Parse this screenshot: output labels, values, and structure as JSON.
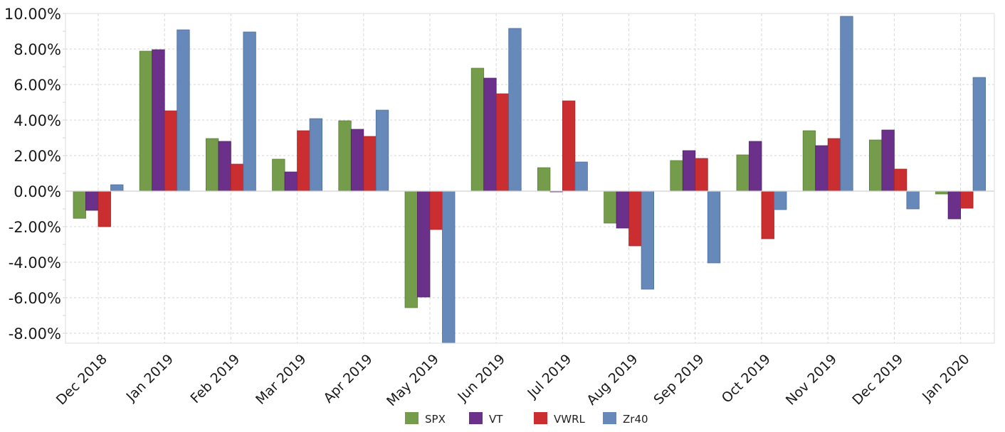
{
  "chart_data": {
    "type": "bar",
    "title": "",
    "xlabel": "",
    "ylabel": "",
    "ylim": [
      -8.56,
      10.0
    ],
    "y_ticks": [
      -8,
      -6,
      -4,
      -2,
      0,
      2,
      4,
      6,
      8,
      10
    ],
    "y_tick_labels": [
      "-8.00%",
      "-6.00%",
      "-4.00%",
      "-2.00%",
      "0.00%",
      "2.00%",
      "4.00%",
      "6.00%",
      "8.00%",
      "10.00%"
    ],
    "grid": true,
    "legend_position": "bottom",
    "categories": [
      "Dec 2018",
      "Jan 2019",
      "Feb 2019",
      "Mar 2019",
      "Apr 2019",
      "May 2019",
      "Jun 2019",
      "Jul 2019",
      "Aug 2019",
      "Sep 2019",
      "Oct 2019",
      "Nov 2019",
      "Dec 2019",
      "Jan 2020"
    ],
    "series": [
      {
        "name": "SPX",
        "color": "#759c4b",
        "stroke": "#5c7f38",
        "values": [
          -1.53,
          7.88,
          2.96,
          1.8,
          3.96,
          -6.56,
          6.92,
          1.32,
          -1.8,
          1.72,
          2.04,
          3.4,
          2.88,
          -0.16
        ]
      },
      {
        "name": "VT",
        "color": "#6b318a",
        "stroke": "#4f2068",
        "values": [
          -1.08,
          7.96,
          2.8,
          1.08,
          3.48,
          -5.96,
          6.36,
          -0.02,
          -2.08,
          2.28,
          2.8,
          2.56,
          3.44,
          -1.56
        ]
      },
      {
        "name": "VWRL",
        "color": "#cb2e30",
        "stroke": "#a12325",
        "values": [
          -2.0,
          4.52,
          1.52,
          3.4,
          3.08,
          -2.16,
          5.48,
          5.08,
          -3.08,
          1.84,
          -2.68,
          2.96,
          1.24,
          -0.96
        ]
      },
      {
        "name": "Zr40",
        "color": "#6689b9",
        "stroke": "#4d6f9f",
        "values": [
          0.36,
          9.08,
          8.96,
          4.08,
          4.56,
          -8.6,
          9.16,
          1.64,
          -5.52,
          -4.04,
          -1.04,
          9.84,
          -1.0,
          6.4
        ]
      }
    ]
  }
}
